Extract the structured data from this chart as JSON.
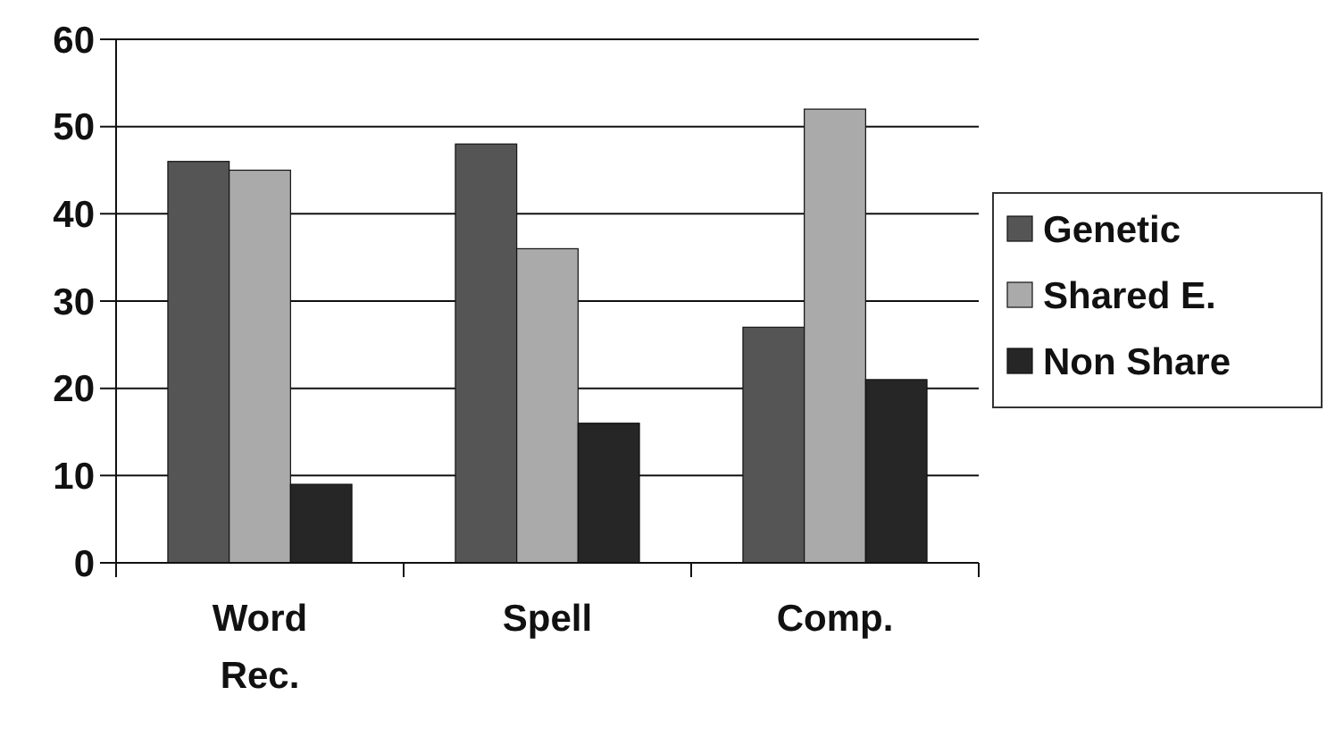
{
  "chart_data": {
    "type": "bar",
    "categories": [
      "Word Rec.",
      "Spell",
      "Comp."
    ],
    "series": [
      {
        "name": "Genetic",
        "color": "#555555",
        "values": [
          46,
          48,
          27
        ]
      },
      {
        "name": "Shared E.",
        "color": "#aaaaaa",
        "values": [
          45,
          36,
          52
        ]
      },
      {
        "name": "Non Share",
        "color": "#262626",
        "values": [
          9,
          16,
          21
        ]
      }
    ],
    "ylim": [
      0,
      60
    ],
    "yticks": [
      0,
      10,
      20,
      30,
      40,
      50,
      60
    ],
    "grid": "y",
    "legend": "right"
  }
}
